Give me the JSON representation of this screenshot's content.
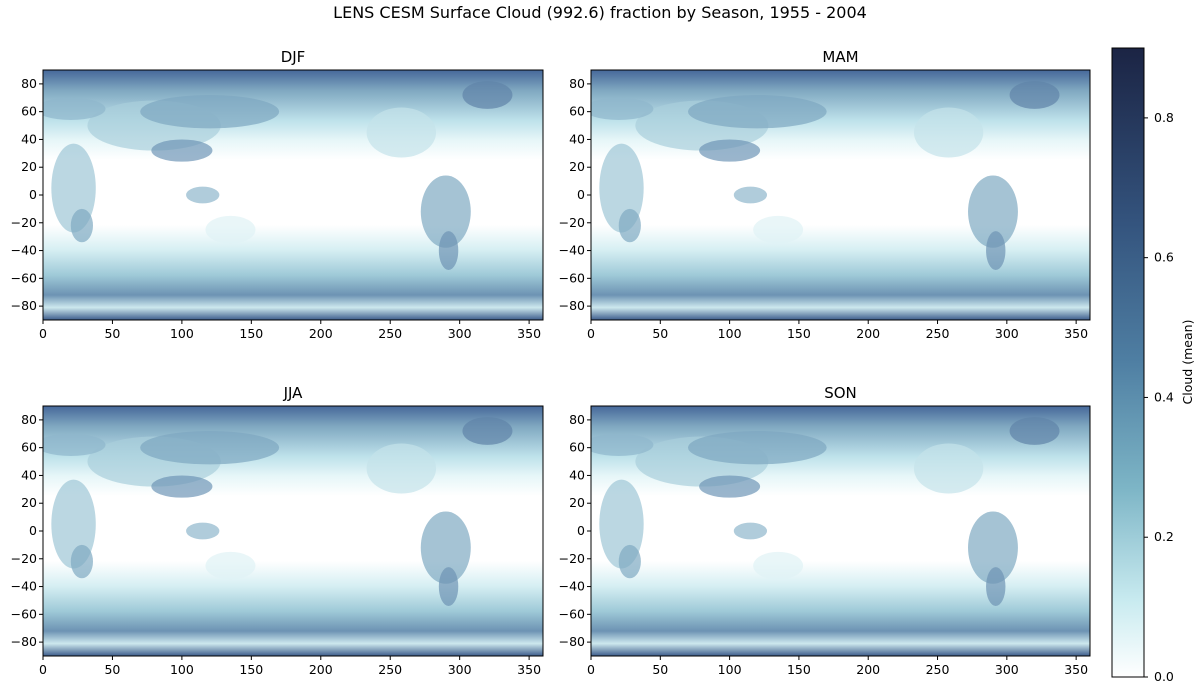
{
  "chart_data": {
    "type": "heatmap",
    "title": "LENS CESM Surface Cloud (992.6) fraction by Season, 1955 - 2004",
    "panels": [
      {
        "title": "DJF",
        "xlim": [
          0,
          360
        ],
        "ylim": [
          -90,
          90
        ]
      },
      {
        "title": "MAM",
        "xlim": [
          0,
          360
        ],
        "ylim": [
          -90,
          90
        ]
      },
      {
        "title": "JJA",
        "xlim": [
          0,
          360
        ],
        "ylim": [
          -90,
          90
        ]
      },
      {
        "title": "SON",
        "xlim": [
          0,
          360
        ],
        "ylim": [
          -90,
          90
        ]
      }
    ],
    "xticks": [
      "0",
      "50",
      "100",
      "150",
      "200",
      "250",
      "300",
      "350"
    ],
    "yticks": [
      "80",
      "60",
      "40",
      "20",
      "0",
      "−20",
      "−40",
      "−60",
      "−80"
    ],
    "colorbar": {
      "label": "Cloud (mean)",
      "range": [
        0.0,
        0.9
      ],
      "ticks": [
        "0.0",
        "0.2",
        "0.4",
        "0.6",
        "0.8"
      ],
      "colors": [
        "#ffffff",
        "#c9ebf0",
        "#7db5c6",
        "#4f7fa3",
        "#34547e",
        "#1b2444"
      ]
    }
  }
}
